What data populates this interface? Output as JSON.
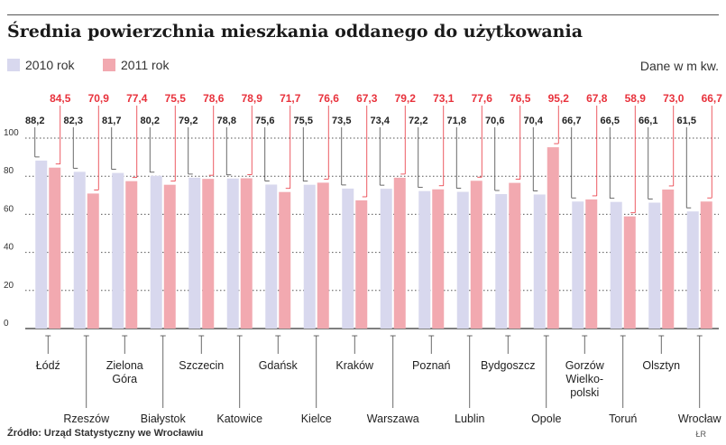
{
  "title": "Średnia powierzchnia mieszkania oddanego do użytkowania",
  "unit_note": "Dane w m kw.",
  "source": "Źródło: Urząd Statystyczny we Wrocławiu",
  "credit": "ŁR",
  "colors": {
    "old": "#d8d8ee",
    "new": "#f2a9b0",
    "new_label": "#e8323c",
    "grid": "#555555"
  },
  "chart_data": {
    "type": "bar",
    "title": "Średnia powierzchnia mieszkania oddanego do użytkowania",
    "ylim": [
      0,
      100
    ],
    "yticks": [
      0,
      20,
      40,
      60,
      80,
      100
    ],
    "categories": [
      [
        "Łódź"
      ],
      [
        "Rzeszów"
      ],
      [
        "Zielona",
        "Góra"
      ],
      [
        "Białystok"
      ],
      [
        "Szczecin"
      ],
      [
        "Katowice"
      ],
      [
        "Gdańsk"
      ],
      [
        "Kielce"
      ],
      [
        "Kraków"
      ],
      [
        "Warszawa"
      ],
      [
        "Poznań"
      ],
      [
        "Lublin"
      ],
      [
        "Bydgoszcz"
      ],
      [
        "Opole"
      ],
      [
        "Gorzów",
        "Wielko-",
        "polski"
      ],
      [
        "Toruń"
      ],
      [
        "Olsztyn"
      ],
      [
        "Wrocław"
      ]
    ],
    "series": [
      {
        "name": "2010 rok",
        "values": [
          88.2,
          82.3,
          81.7,
          80.2,
          79.2,
          78.8,
          75.6,
          75.5,
          73.5,
          73.4,
          72.2,
          71.8,
          70.6,
          70.4,
          66.7,
          66.5,
          66.1,
          61.5
        ],
        "labels": [
          "88,2",
          "82,3",
          "81,7",
          "80,2",
          "79,2",
          "78,8",
          "75,6",
          "75,5",
          "73,5",
          "73,4",
          "72,2",
          "71,8",
          "70,6",
          "70,4",
          "66,7",
          "66,5",
          "66,1",
          "61,5"
        ]
      },
      {
        "name": "2011 rok",
        "values": [
          84.5,
          70.9,
          77.4,
          75.5,
          78.6,
          78.9,
          71.7,
          76.6,
          67.3,
          79.2,
          73.1,
          77.6,
          76.5,
          95.2,
          67.8,
          58.9,
          73.0,
          66.7
        ],
        "labels": [
          "84,5",
          "70,9",
          "77,4",
          "75,5",
          "78,6",
          "78,9",
          "71,7",
          "76,6",
          "67,3",
          "79,2",
          "73,1",
          "77,6",
          "76,5",
          "95,2",
          "67,8",
          "58,9",
          "73,0",
          "66,7"
        ]
      }
    ],
    "grid": true,
    "legend": "top-left"
  }
}
